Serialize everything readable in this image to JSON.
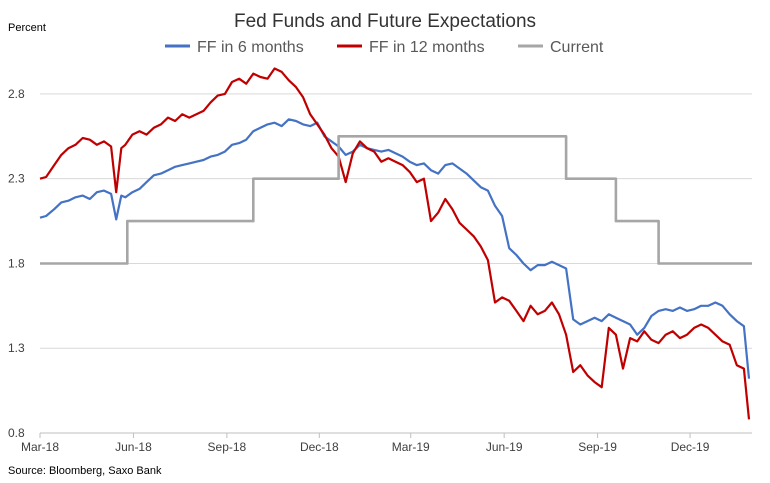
{
  "chart_data": {
    "type": "line",
    "title": "Fed Funds and Future Expectations",
    "ylabel": "Percent",
    "source": "Source: Bloomberg, Saxo Bank",
    "ylim": [
      0.8,
      3.0
    ],
    "yticks": [
      0.8,
      1.3,
      1.8,
      2.3,
      2.8
    ],
    "ytick_labels": [
      "0.8",
      "1.3",
      "1.8",
      "2.3",
      "2.8"
    ],
    "xlim": [
      "2018-03-01",
      "2020-01-31"
    ],
    "xticks": [
      "2018-03-01",
      "2018-06-01",
      "2018-09-01",
      "2018-12-01",
      "2019-03-01",
      "2019-06-01",
      "2019-09-01",
      "2019-12-01"
    ],
    "xtick_labels": [
      "Mar-18",
      "Jun-18",
      "Sep-18",
      "Dec-18",
      "Mar-19",
      "Jun-19",
      "Sep-19",
      "Dec-19"
    ],
    "grid": "horizontal",
    "legend_position": "top",
    "series": [
      {
        "name": "FF in 6 months",
        "color": "#4472c4",
        "x": [
          "2018-03-01",
          "2018-03-07",
          "2018-03-15",
          "2018-03-22",
          "2018-03-29",
          "2018-04-05",
          "2018-04-12",
          "2018-04-19",
          "2018-04-26",
          "2018-05-03",
          "2018-05-10",
          "2018-05-15",
          "2018-05-20",
          "2018-05-24",
          "2018-05-31",
          "2018-06-07",
          "2018-06-14",
          "2018-06-21",
          "2018-06-28",
          "2018-07-05",
          "2018-07-12",
          "2018-07-19",
          "2018-07-26",
          "2018-08-02",
          "2018-08-09",
          "2018-08-16",
          "2018-08-23",
          "2018-08-30",
          "2018-09-06",
          "2018-09-13",
          "2018-09-20",
          "2018-09-27",
          "2018-10-04",
          "2018-10-11",
          "2018-10-18",
          "2018-10-25",
          "2018-11-01",
          "2018-11-08",
          "2018-11-15",
          "2018-11-22",
          "2018-11-29",
          "2018-12-06",
          "2018-12-13",
          "2018-12-20",
          "2018-12-27",
          "2019-01-03",
          "2019-01-10",
          "2019-01-17",
          "2019-01-24",
          "2019-01-31",
          "2019-02-07",
          "2019-02-14",
          "2019-02-21",
          "2019-02-28",
          "2019-03-07",
          "2019-03-14",
          "2019-03-21",
          "2019-03-28",
          "2019-04-04",
          "2019-04-11",
          "2019-04-18",
          "2019-04-25",
          "2019-05-02",
          "2019-05-09",
          "2019-05-16",
          "2019-05-23",
          "2019-05-30",
          "2019-06-06",
          "2019-06-13",
          "2019-06-20",
          "2019-06-27",
          "2019-07-04",
          "2019-07-11",
          "2019-07-18",
          "2019-07-25",
          "2019-08-01",
          "2019-08-08",
          "2019-08-15",
          "2019-08-22",
          "2019-08-29",
          "2019-09-05",
          "2019-09-12",
          "2019-09-19",
          "2019-09-26",
          "2019-10-03",
          "2019-10-10",
          "2019-10-17",
          "2019-10-24",
          "2019-10-31",
          "2019-11-07",
          "2019-11-14",
          "2019-11-21",
          "2019-11-28",
          "2019-12-05",
          "2019-12-12",
          "2019-12-19",
          "2019-12-26",
          "2020-01-02",
          "2020-01-09",
          "2020-01-16",
          "2020-01-23",
          "2020-01-28"
        ],
        "values": [
          2.07,
          2.08,
          2.12,
          2.16,
          2.17,
          2.19,
          2.2,
          2.18,
          2.22,
          2.23,
          2.21,
          2.06,
          2.2,
          2.19,
          2.22,
          2.24,
          2.28,
          2.32,
          2.33,
          2.35,
          2.37,
          2.38,
          2.39,
          2.4,
          2.41,
          2.43,
          2.44,
          2.46,
          2.5,
          2.51,
          2.53,
          2.58,
          2.6,
          2.62,
          2.63,
          2.61,
          2.65,
          2.64,
          2.62,
          2.61,
          2.63,
          2.55,
          2.52,
          2.49,
          2.44,
          2.46,
          2.5,
          2.48,
          2.47,
          2.46,
          2.47,
          2.45,
          2.43,
          2.4,
          2.38,
          2.39,
          2.35,
          2.33,
          2.38,
          2.39,
          2.36,
          2.33,
          2.29,
          2.25,
          2.23,
          2.14,
          2.08,
          1.89,
          1.85,
          1.8,
          1.76,
          1.79,
          1.79,
          1.81,
          1.79,
          1.77,
          1.47,
          1.44,
          1.46,
          1.48,
          1.46,
          1.5,
          1.48,
          1.46,
          1.44,
          1.38,
          1.42,
          1.49,
          1.52,
          1.53,
          1.52,
          1.54,
          1.52,
          1.53,
          1.55,
          1.55,
          1.57,
          1.55,
          1.5,
          1.46,
          1.43,
          1.12
        ]
      },
      {
        "name": "FF in 12 months",
        "color": "#c00000",
        "x": [
          "2018-03-01",
          "2018-03-07",
          "2018-03-15",
          "2018-03-22",
          "2018-03-29",
          "2018-04-05",
          "2018-04-12",
          "2018-04-19",
          "2018-04-26",
          "2018-05-03",
          "2018-05-10",
          "2018-05-15",
          "2018-05-20",
          "2018-05-24",
          "2018-05-31",
          "2018-06-07",
          "2018-06-14",
          "2018-06-21",
          "2018-06-28",
          "2018-07-05",
          "2018-07-12",
          "2018-07-19",
          "2018-07-26",
          "2018-08-02",
          "2018-08-09",
          "2018-08-16",
          "2018-08-23",
          "2018-08-30",
          "2018-09-06",
          "2018-09-13",
          "2018-09-20",
          "2018-09-27",
          "2018-10-04",
          "2018-10-11",
          "2018-10-18",
          "2018-10-25",
          "2018-11-01",
          "2018-11-08",
          "2018-11-15",
          "2018-11-22",
          "2018-11-29",
          "2018-12-06",
          "2018-12-13",
          "2018-12-20",
          "2018-12-27",
          "2019-01-03",
          "2019-01-10",
          "2019-01-17",
          "2019-01-24",
          "2019-01-31",
          "2019-02-07",
          "2019-02-14",
          "2019-02-21",
          "2019-02-28",
          "2019-03-07",
          "2019-03-14",
          "2019-03-21",
          "2019-03-28",
          "2019-04-04",
          "2019-04-11",
          "2019-04-18",
          "2019-04-25",
          "2019-05-02",
          "2019-05-09",
          "2019-05-16",
          "2019-05-23",
          "2019-05-30",
          "2019-06-06",
          "2019-06-13",
          "2019-06-20",
          "2019-06-27",
          "2019-07-04",
          "2019-07-11",
          "2019-07-18",
          "2019-07-25",
          "2019-08-01",
          "2019-08-08",
          "2019-08-15",
          "2019-08-22",
          "2019-08-29",
          "2019-09-05",
          "2019-09-12",
          "2019-09-19",
          "2019-09-26",
          "2019-10-03",
          "2019-10-10",
          "2019-10-17",
          "2019-10-24",
          "2019-10-31",
          "2019-11-07",
          "2019-11-14",
          "2019-11-21",
          "2019-11-28",
          "2019-12-05",
          "2019-12-12",
          "2019-12-19",
          "2019-12-26",
          "2020-01-02",
          "2020-01-09",
          "2020-01-16",
          "2020-01-23",
          "2020-01-28"
        ],
        "values": [
          2.3,
          2.31,
          2.38,
          2.44,
          2.48,
          2.5,
          2.54,
          2.53,
          2.5,
          2.52,
          2.49,
          2.22,
          2.48,
          2.5,
          2.56,
          2.58,
          2.56,
          2.6,
          2.62,
          2.66,
          2.64,
          2.68,
          2.66,
          2.68,
          2.7,
          2.75,
          2.79,
          2.8,
          2.87,
          2.89,
          2.86,
          2.92,
          2.9,
          2.89,
          2.95,
          2.93,
          2.88,
          2.84,
          2.78,
          2.68,
          2.62,
          2.56,
          2.48,
          2.43,
          2.28,
          2.45,
          2.52,
          2.48,
          2.46,
          2.4,
          2.42,
          2.4,
          2.38,
          2.34,
          2.28,
          2.3,
          2.05,
          2.1,
          2.18,
          2.12,
          2.04,
          2.0,
          1.96,
          1.9,
          1.82,
          1.57,
          1.6,
          1.58,
          1.52,
          1.46,
          1.55,
          1.5,
          1.52,
          1.57,
          1.5,
          1.38,
          1.16,
          1.2,
          1.14,
          1.1,
          1.07,
          1.42,
          1.38,
          1.18,
          1.36,
          1.34,
          1.4,
          1.35,
          1.33,
          1.38,
          1.4,
          1.36,
          1.38,
          1.42,
          1.44,
          1.42,
          1.38,
          1.34,
          1.32,
          1.2,
          1.18,
          0.88
        ]
      },
      {
        "name": "Current",
        "color": "#a6a6a6",
        "step": true,
        "x": [
          "2018-03-01",
          "2018-05-26",
          "2018-09-27",
          "2018-12-20",
          "2019-08-01",
          "2019-09-19",
          "2019-10-31",
          "2020-01-31"
        ],
        "values": [
          1.8,
          2.05,
          2.3,
          2.55,
          2.3,
          2.05,
          1.8,
          1.8
        ]
      }
    ]
  }
}
